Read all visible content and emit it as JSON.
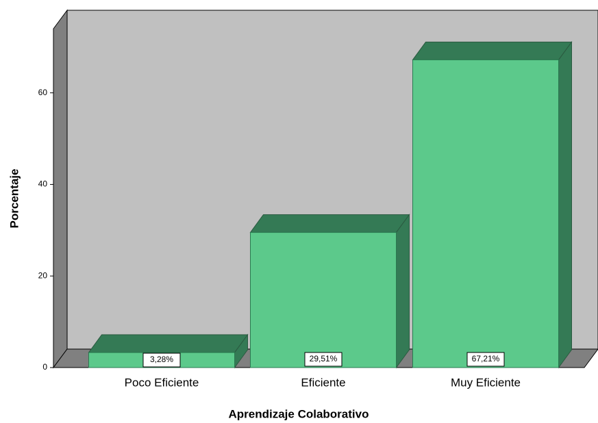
{
  "chart_data": {
    "type": "bar3d",
    "x_label": "Aprendizaje Colaborativo",
    "y_label": "Porcentaje",
    "categories": [
      "Poco Eficiente",
      "Eficiente",
      "Muy Eficiente"
    ],
    "values": [
      3.28,
      29.51,
      67.21
    ],
    "value_labels": [
      "3,28%",
      "29,51%",
      "67,21%"
    ],
    "color": "#5cc98b",
    "ylim": [
      0,
      74
    ],
    "yticks": [
      0,
      20,
      40,
      60
    ]
  }
}
